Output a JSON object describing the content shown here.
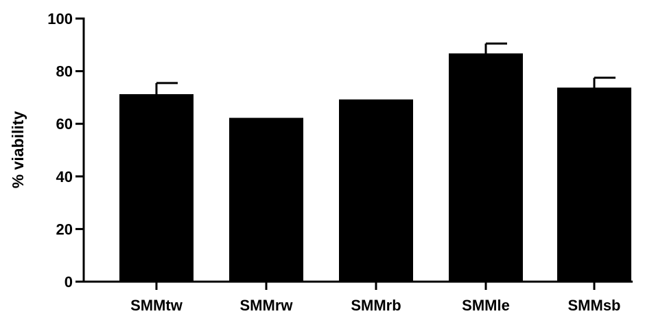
{
  "chart_data": {
    "type": "bar",
    "title": "",
    "xlabel": "",
    "ylabel": "% viability",
    "ylim": [
      0,
      100
    ],
    "yticks": [
      0,
      20,
      40,
      60,
      80,
      100
    ],
    "categories": [
      "SMMtw",
      "SMMrw",
      "SMMrb",
      "SMMle",
      "SMMsb"
    ],
    "values": [
      71,
      62,
      69,
      86.5,
      73.5
    ],
    "errors": [
      4.5,
      0.5,
      0.4,
      4,
      4
    ],
    "grid": false,
    "legend": "none",
    "colors": {
      "bar": "#000000",
      "axis": "#000000",
      "background": "#ffffff"
    }
  }
}
